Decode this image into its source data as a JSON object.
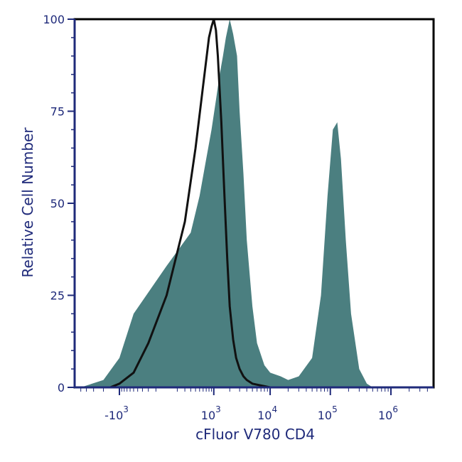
{
  "chart_data": {
    "type": "area",
    "xlabel": "cFluor V780 CD4",
    "ylabel": "Relative Cell Number",
    "x_scale": "biexponential",
    "x_ticks": [
      {
        "value": -1000,
        "base": "-10",
        "exp": "3"
      },
      {
        "value": 1000,
        "base": "10",
        "exp": "3"
      },
      {
        "value": 10000,
        "base": "10",
        "exp": "4"
      },
      {
        "value": 100000,
        "base": "10",
        "exp": "5"
      },
      {
        "value": 1000000,
        "base": "10",
        "exp": "6"
      }
    ],
    "y_ticks": [
      "0",
      "25",
      "50",
      "75",
      "100"
    ],
    "ylim": [
      0,
      100
    ],
    "grid": false,
    "colors": {
      "filled": "#4b7f80",
      "outline": "#111111",
      "axis_text": "#1f2a7a",
      "axis": "#1f2a7a"
    },
    "series": [
      {
        "style": "filled",
        "x": [
          -5000,
          -2000,
          -1000,
          -500,
          0,
          300,
          500,
          700,
          900,
          1100,
          1300,
          1500,
          1700,
          2000,
          2300,
          2700,
          3000,
          3500,
          4000,
          5000,
          6000,
          8000,
          10000,
          15000,
          20000,
          30000,
          50000,
          70000,
          90000,
          110000,
          130000,
          150000,
          180000,
          220000,
          300000,
          400000,
          500000
        ],
        "y": [
          0,
          2,
          8,
          20,
          33,
          42,
          52,
          62,
          70,
          78,
          85,
          90,
          95,
          100,
          96,
          90,
          75,
          58,
          40,
          22,
          12,
          6,
          4,
          3,
          2,
          3,
          8,
          25,
          52,
          70,
          72,
          62,
          40,
          20,
          5,
          1,
          0
        ]
      },
      {
        "style": "outline",
        "x": [
          -1500,
          -1000,
          -500,
          -200,
          0,
          200,
          400,
          600,
          800,
          900,
          1000,
          1100,
          1200,
          1400,
          1600,
          1800,
          2000,
          2300,
          2600,
          3000,
          3500,
          4000,
          5000,
          7000,
          10000,
          15000
        ],
        "y": [
          0,
          1,
          4,
          12,
          25,
          45,
          65,
          82,
          95,
          98,
          100,
          97,
          90,
          72,
          52,
          35,
          22,
          13,
          8,
          5,
          3,
          2,
          1,
          0.5,
          0,
          0
        ]
      }
    ]
  }
}
